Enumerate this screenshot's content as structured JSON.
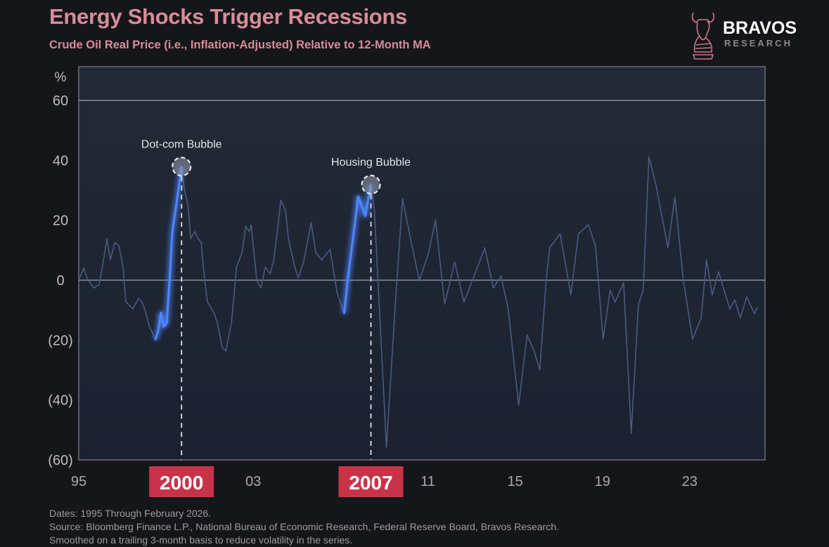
{
  "header": {
    "title": "Energy Shocks Trigger Recessions",
    "subtitle": "Crude Oil Real Price (i.e., Inflation-Adjusted) Relative to 12-Month MA"
  },
  "logo": {
    "name": "BRAVOS",
    "sub": "RESEARCH",
    "icon": "bull-head-icon"
  },
  "footer": {
    "lines": [
      "Dates: 1995 Through February 2026.",
      "Source: Bloomberg Finance L.P., National Bureau of Economic Research, Federal Reserve Board, Bravos Research.",
      "Smoothed on a trailing 3-month basis to reduce volatility in the series."
    ]
  },
  "colors": {
    "background": "#151619",
    "plot": "#1e2530",
    "line": "#4a5a80",
    "highlight": "#4f86ff",
    "title": "#d88c9c",
    "year_box": "#c8334a"
  },
  "chart_data": {
    "type": "line",
    "title": "Energy Shocks Trigger Recessions",
    "subtitle": "Crude Oil Real Price (i.e., Inflation-Adjusted) Relative to 12-Month MA",
    "ylabel": "%",
    "xlim": [
      1995,
      2026.45
    ],
    "ylim": [
      -60,
      71
    ],
    "grid": false,
    "y_ticks": [
      {
        "v": 60,
        "label": "60"
      },
      {
        "v": 40,
        "label": "40"
      },
      {
        "v": 20,
        "label": "20"
      },
      {
        "v": 0,
        "label": "0"
      },
      {
        "v": -20,
        "label": "(20)"
      },
      {
        "v": -40,
        "label": "(40)"
      },
      {
        "v": -60,
        "label": "(60)"
      }
    ],
    "x_ticks": [
      {
        "v": 1995,
        "label": "95"
      },
      {
        "v": 2003,
        "label": "03"
      },
      {
        "v": 2011,
        "label": "11"
      },
      {
        "v": 2015,
        "label": "15"
      },
      {
        "v": 2019,
        "label": "19"
      },
      {
        "v": 2023,
        "label": "23"
      }
    ],
    "reference_lines": [
      60,
      0
    ],
    "series": [
      {
        "name": "Crude oil real price vs 12M MA",
        "points": [
          [
            1995.0,
            0
          ],
          [
            1995.23,
            4.0
          ],
          [
            1995.42,
            0
          ],
          [
            1995.71,
            -2.6
          ],
          [
            1995.94,
            -1.4
          ],
          [
            1996.19,
            9.1
          ],
          [
            1996.29,
            13.8
          ],
          [
            1996.45,
            6.8
          ],
          [
            1996.65,
            12.6
          ],
          [
            1996.84,
            11.5
          ],
          [
            1997.03,
            4.4
          ],
          [
            1997.16,
            -7.3
          ],
          [
            1997.48,
            -9.6
          ],
          [
            1997.74,
            -6.1
          ],
          [
            1997.9,
            -7.3
          ],
          [
            1998.06,
            -10.5
          ],
          [
            1998.23,
            -15.2
          ],
          [
            1998.52,
            -19.9
          ],
          [
            1998.65,
            -16.6
          ],
          [
            1998.77,
            -10.8
          ],
          [
            1998.9,
            -15.5
          ],
          [
            1999.03,
            -14.3
          ],
          [
            1999.16,
            -0.2
          ],
          [
            1999.29,
            16.2
          ],
          [
            1999.48,
            25.5
          ],
          [
            1999.61,
            32.6
          ],
          [
            1999.71,
            37.9
          ],
          [
            1999.84,
            30.2
          ],
          [
            2000.0,
            25.5
          ],
          [
            2000.13,
            13.8
          ],
          [
            2000.32,
            16.2
          ],
          [
            2000.48,
            13.8
          ],
          [
            2000.61,
            12.6
          ],
          [
            2000.77,
            -0.2
          ],
          [
            2000.9,
            -7.3
          ],
          [
            2001.19,
            -10.8
          ],
          [
            2001.35,
            -14.3
          ],
          [
            2001.58,
            -22.5
          ],
          [
            2001.74,
            -23.7
          ],
          [
            2002.0,
            -14.3
          ],
          [
            2002.23,
            4.4
          ],
          [
            2002.48,
            9.1
          ],
          [
            2002.65,
            18.0
          ],
          [
            2002.81,
            16.2
          ],
          [
            2002.9,
            18.5
          ],
          [
            2003.03,
            9.1
          ],
          [
            2003.16,
            -0.2
          ],
          [
            2003.35,
            -2.6
          ],
          [
            2003.55,
            4.4
          ],
          [
            2003.77,
            2.1
          ],
          [
            2003.94,
            6.8
          ],
          [
            2004.1,
            16.2
          ],
          [
            2004.26,
            26.7
          ],
          [
            2004.48,
            23.2
          ],
          [
            2004.61,
            13.8
          ],
          [
            2004.9,
            4.4
          ],
          [
            2005.06,
            0.9
          ],
          [
            2005.29,
            5.6
          ],
          [
            2005.65,
            19.2
          ],
          [
            2005.87,
            9.1
          ],
          [
            2006.13,
            6.8
          ],
          [
            2006.52,
            10.3
          ],
          [
            2006.84,
            -4.2
          ],
          [
            2007.16,
            -11.2
          ],
          [
            2007.32,
            -0.2
          ],
          [
            2007.81,
            27.9
          ],
          [
            2008.13,
            21.5
          ],
          [
            2008.39,
            31.9
          ],
          [
            2008.55,
            23.2
          ],
          [
            2008.77,
            -8.0
          ],
          [
            2009.1,
            -55.7
          ],
          [
            2009.52,
            -6.6
          ],
          [
            2009.84,
            27.2
          ],
          [
            2010.16,
            15.5
          ],
          [
            2010.61,
            -0.2
          ],
          [
            2011.03,
            9.1
          ],
          [
            2011.35,
            20.1
          ],
          [
            2011.77,
            -8.0
          ],
          [
            2012.23,
            6.1
          ],
          [
            2012.65,
            -7.3
          ],
          [
            2012.87,
            -3.3
          ],
          [
            2013.61,
            10.8
          ],
          [
            2014.0,
            -2.6
          ],
          [
            2014.35,
            1.4
          ],
          [
            2014.68,
            -9.6
          ],
          [
            2015.16,
            -41.7
          ],
          [
            2015.55,
            -18.3
          ],
          [
            2015.87,
            -23.7
          ],
          [
            2016.13,
            -30.0
          ],
          [
            2016.42,
            -0.2
          ],
          [
            2016.58,
            10.8
          ],
          [
            2017.06,
            15.5
          ],
          [
            2017.55,
            -4.9
          ],
          [
            2017.9,
            15.5
          ],
          [
            2018.35,
            18.5
          ],
          [
            2018.68,
            11.5
          ],
          [
            2019.03,
            -19.7
          ],
          [
            2019.35,
            -3.3
          ],
          [
            2019.58,
            -7.3
          ],
          [
            2019.97,
            -0.9
          ],
          [
            2020.32,
            -51.1
          ],
          [
            2020.65,
            -8.0
          ],
          [
            2020.87,
            -3.3
          ],
          [
            2021.13,
            41.2
          ],
          [
            2021.45,
            31.9
          ],
          [
            2022.0,
            10.8
          ],
          [
            2022.32,
            27.9
          ],
          [
            2022.71,
            -0.2
          ],
          [
            2023.13,
            -19.7
          ],
          [
            2023.52,
            -12.6
          ],
          [
            2023.77,
            6.8
          ],
          [
            2024.03,
            -4.9
          ],
          [
            2024.32,
            2.8
          ],
          [
            2024.84,
            -9.6
          ],
          [
            2025.06,
            -6.6
          ],
          [
            2025.32,
            -12.6
          ],
          [
            2025.61,
            -5.6
          ],
          [
            2025.97,
            -11.2
          ],
          [
            2026.1,
            -8.9
          ]
        ]
      }
    ],
    "highlights": [
      {
        "label": "Dot-com Bubble",
        "year_label": "2000",
        "points": [
          [
            1998.52,
            -19.9
          ],
          [
            1998.65,
            -16.6
          ],
          [
            1998.77,
            -10.8
          ],
          [
            1998.9,
            -15.5
          ],
          [
            1999.03,
            -14.3
          ],
          [
            1999.16,
            -0.2
          ],
          [
            1999.29,
            16.2
          ],
          [
            1999.48,
            25.5
          ],
          [
            1999.61,
            32.6
          ],
          [
            1999.71,
            37.9
          ]
        ]
      },
      {
        "label": "Housing Bubble",
        "year_label": "2007",
        "points": [
          [
            2007.16,
            -11.2
          ],
          [
            2007.32,
            -0.2
          ],
          [
            2007.81,
            27.9
          ],
          [
            2008.13,
            21.5
          ],
          [
            2008.39,
            31.9
          ]
        ]
      }
    ]
  }
}
